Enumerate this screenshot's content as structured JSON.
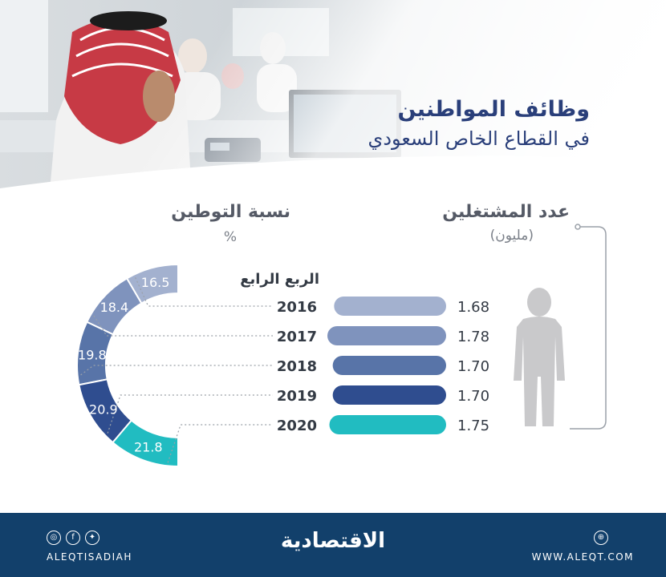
{
  "title": {
    "line1": "وظائف المواطنين",
    "line2": "في القطاع الخاص السعودي"
  },
  "labels": {
    "employees": "عدد المشتغلين",
    "employees_unit": "(مليون)",
    "saudization": "نسبة التوطين",
    "saudization_unit": "%",
    "quarter": "الربع الرابع"
  },
  "chart_data": [
    {
      "type": "bar",
      "orientation": "horizontal",
      "title": "عدد المشتغلين",
      "unit": "(مليون)",
      "categories": [
        "2016",
        "2017",
        "2018",
        "2019",
        "2020"
      ],
      "values": [
        1.68,
        1.78,
        1.7,
        1.7,
        1.75
      ],
      "value_labels": [
        "1.68",
        "1.78",
        "1.70",
        "1.70",
        "1.75"
      ],
      "colors": [
        "#a3b1cf",
        "#7f93bd",
        "#5874a8",
        "#2f4d8f",
        "#21bcc1"
      ],
      "xlim": [
        0,
        1.8
      ]
    },
    {
      "type": "pie",
      "style": "half-donut",
      "title": "نسبة التوطين",
      "unit": "%",
      "categories": [
        "2016",
        "2017",
        "2018",
        "2019",
        "2020"
      ],
      "values": [
        16.5,
        18.4,
        19.8,
        20.9,
        21.8
      ],
      "value_labels": [
        "16.5",
        "18.4",
        "19.8",
        "20.9",
        "21.8"
      ],
      "colors": [
        "#a3b1cf",
        "#7f93bd",
        "#5874a8",
        "#2f4d8f",
        "#21bcc1"
      ]
    }
  ],
  "footer": {
    "left_handle": "ALEQTISADIAH",
    "logo": "الاقتصادية",
    "right_url": "WWW.ALEQT.COM",
    "social_icons": [
      "instagram-icon",
      "facebook-icon",
      "twitter-icon"
    ],
    "web_icon": "web-icon"
  }
}
